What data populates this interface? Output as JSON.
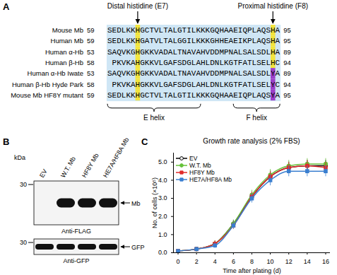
{
  "panel_A": {
    "label": "A",
    "annotations": [
      "Distal histidine (E7)",
      "Proximal histidine (F8)"
    ],
    "rows": [
      {
        "name": "Mouse Mb",
        "start": 59,
        "sequence": "SEDLKKHGCTVLTALGTILKKKGQHAAEIQPLAQSHA",
        "end": 95
      },
      {
        "name": "Human Mb",
        "start": 59,
        "sequence": "SEDLKKHGATVLTALGGILKKKGHHEAEIKPLAQSHA",
        "end": 95
      },
      {
        "name": "Human α-Hb",
        "start": 53,
        "sequence": "SAQVKGHGKKVADALTNAVAHVDDMPNALSALSDLHA",
        "end": 89
      },
      {
        "name": "Human β-Hb",
        "start": 58,
        "sequence": " PKVKAHGKKVLGAFSDGLAHLDNLKGTFATLSELHC",
        "end": 94
      },
      {
        "name": "Human α-Hb Iwate",
        "start": 53,
        "sequence": "SAQVKGHGKKVADALTNAVAHVDDMPNALSALSDLYA",
        "end": 89
      },
      {
        "name": "Human β-Hb Hyde Park",
        "start": 58,
        "sequence": " PKVKAHGKKVLGAFSDGLAHLDNLKGTFATLSELYC",
        "end": 94
      },
      {
        "name": "Mouse Mb HF8Y mutant",
        "start": 59,
        "sequence": "SEDLKKHGCTVLTALGTILKKKGQHAAEIQPLAQSYA",
        "end": 95
      }
    ],
    "helices": [
      "E helix",
      "F helix"
    ]
  },
  "panel_B": {
    "label": "B",
    "unit": "kDa",
    "lanes": [
      "EV",
      "W.T. Mb",
      "HF8Y Mb",
      "HE7A/HF8A Mb"
    ],
    "blots": [
      {
        "size": 30,
        "target": "Mb",
        "antibody": "Anti-FLAG",
        "bands": [
          false,
          true,
          true,
          true
        ]
      },
      {
        "size": 30,
        "target": "GFP",
        "antibody": "Anti-GFP",
        "bands": [
          true,
          true,
          true,
          true
        ]
      }
    ]
  },
  "chart_data": {
    "panel": "C",
    "type": "line",
    "title": "Growth rate analysis (2% FBS)",
    "x_label": "Time after plating (d)",
    "y_label": "No. of cells (×10⁵)",
    "x": [
      0,
      2,
      4,
      6,
      8,
      10,
      12,
      14,
      16
    ],
    "series": [
      {
        "name": "EV",
        "color": "#000000",
        "marker": "circle-open",
        "values": [
          0.1,
          0.2,
          0.5,
          1.6,
          3.1,
          4.2,
          4.7,
          4.8,
          4.8
        ],
        "errors": [
          0.05,
          0.1,
          0.15,
          0.2,
          0.25,
          0.3,
          0.3,
          0.3,
          0.3
        ]
      },
      {
        "name": "W.T. Mb",
        "color": "#66c23a",
        "marker": "circle",
        "values": [
          0.1,
          0.2,
          0.5,
          1.6,
          3.2,
          4.3,
          4.8,
          4.9,
          4.9
        ],
        "errors": [
          0.05,
          0.1,
          0.15,
          0.2,
          0.25,
          0.3,
          0.3,
          0.3,
          0.3
        ]
      },
      {
        "name": "HF8Y Mb",
        "color": "#e02a2a",
        "marker": "square",
        "values": [
          0.1,
          0.2,
          0.5,
          1.5,
          3.1,
          4.2,
          4.7,
          4.8,
          4.7
        ],
        "errors": [
          0.05,
          0.1,
          0.15,
          0.2,
          0.25,
          0.3,
          0.3,
          0.3,
          0.3
        ]
      },
      {
        "name": "HE7A/HF8A Mb",
        "color": "#3a7fd0",
        "marker": "square",
        "values": [
          0.1,
          0.2,
          0.4,
          1.5,
          3.0,
          4.0,
          4.5,
          4.5,
          4.5
        ],
        "errors": [
          0.05,
          0.1,
          0.15,
          0.2,
          0.25,
          0.3,
          0.3,
          0.3,
          0.3
        ]
      }
    ],
    "xlim": [
      -0.5,
      16.5
    ],
    "ylim": [
      0,
      5.5
    ],
    "xticks": [
      0,
      2,
      4,
      6,
      8,
      10,
      12,
      14,
      16
    ],
    "yticks": [
      0,
      1,
      2,
      3,
      4,
      5
    ],
    "legend": "top-left",
    "grid": false
  }
}
